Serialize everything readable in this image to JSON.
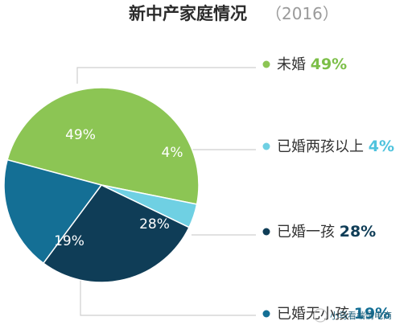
{
  "chart_title": "新中产家庭情况",
  "chart_year": "（2016）",
  "watermark": "小马看端情电商",
  "chart_data": {
    "type": "pie",
    "title": "新中产家庭情况（2016）",
    "slices": [
      {
        "label": "未婚",
        "value": 49,
        "display": "49%",
        "color": "#8cc554",
        "label_color": "#7cbf48"
      },
      {
        "label": "已婚两孩以上",
        "value": 4,
        "display": "4%",
        "color": "#6fd0e3",
        "label_color": "#4fc3dd"
      },
      {
        "label": "已婚一孩",
        "value": 28,
        "display": "28%",
        "color": "#0f3d57",
        "label_color": "#0f3d57"
      },
      {
        "label": "已婚无小孩",
        "value": 19,
        "display": "19%",
        "color": "#146f95",
        "label_color": "#146f95"
      }
    ],
    "legend_position": "right"
  }
}
